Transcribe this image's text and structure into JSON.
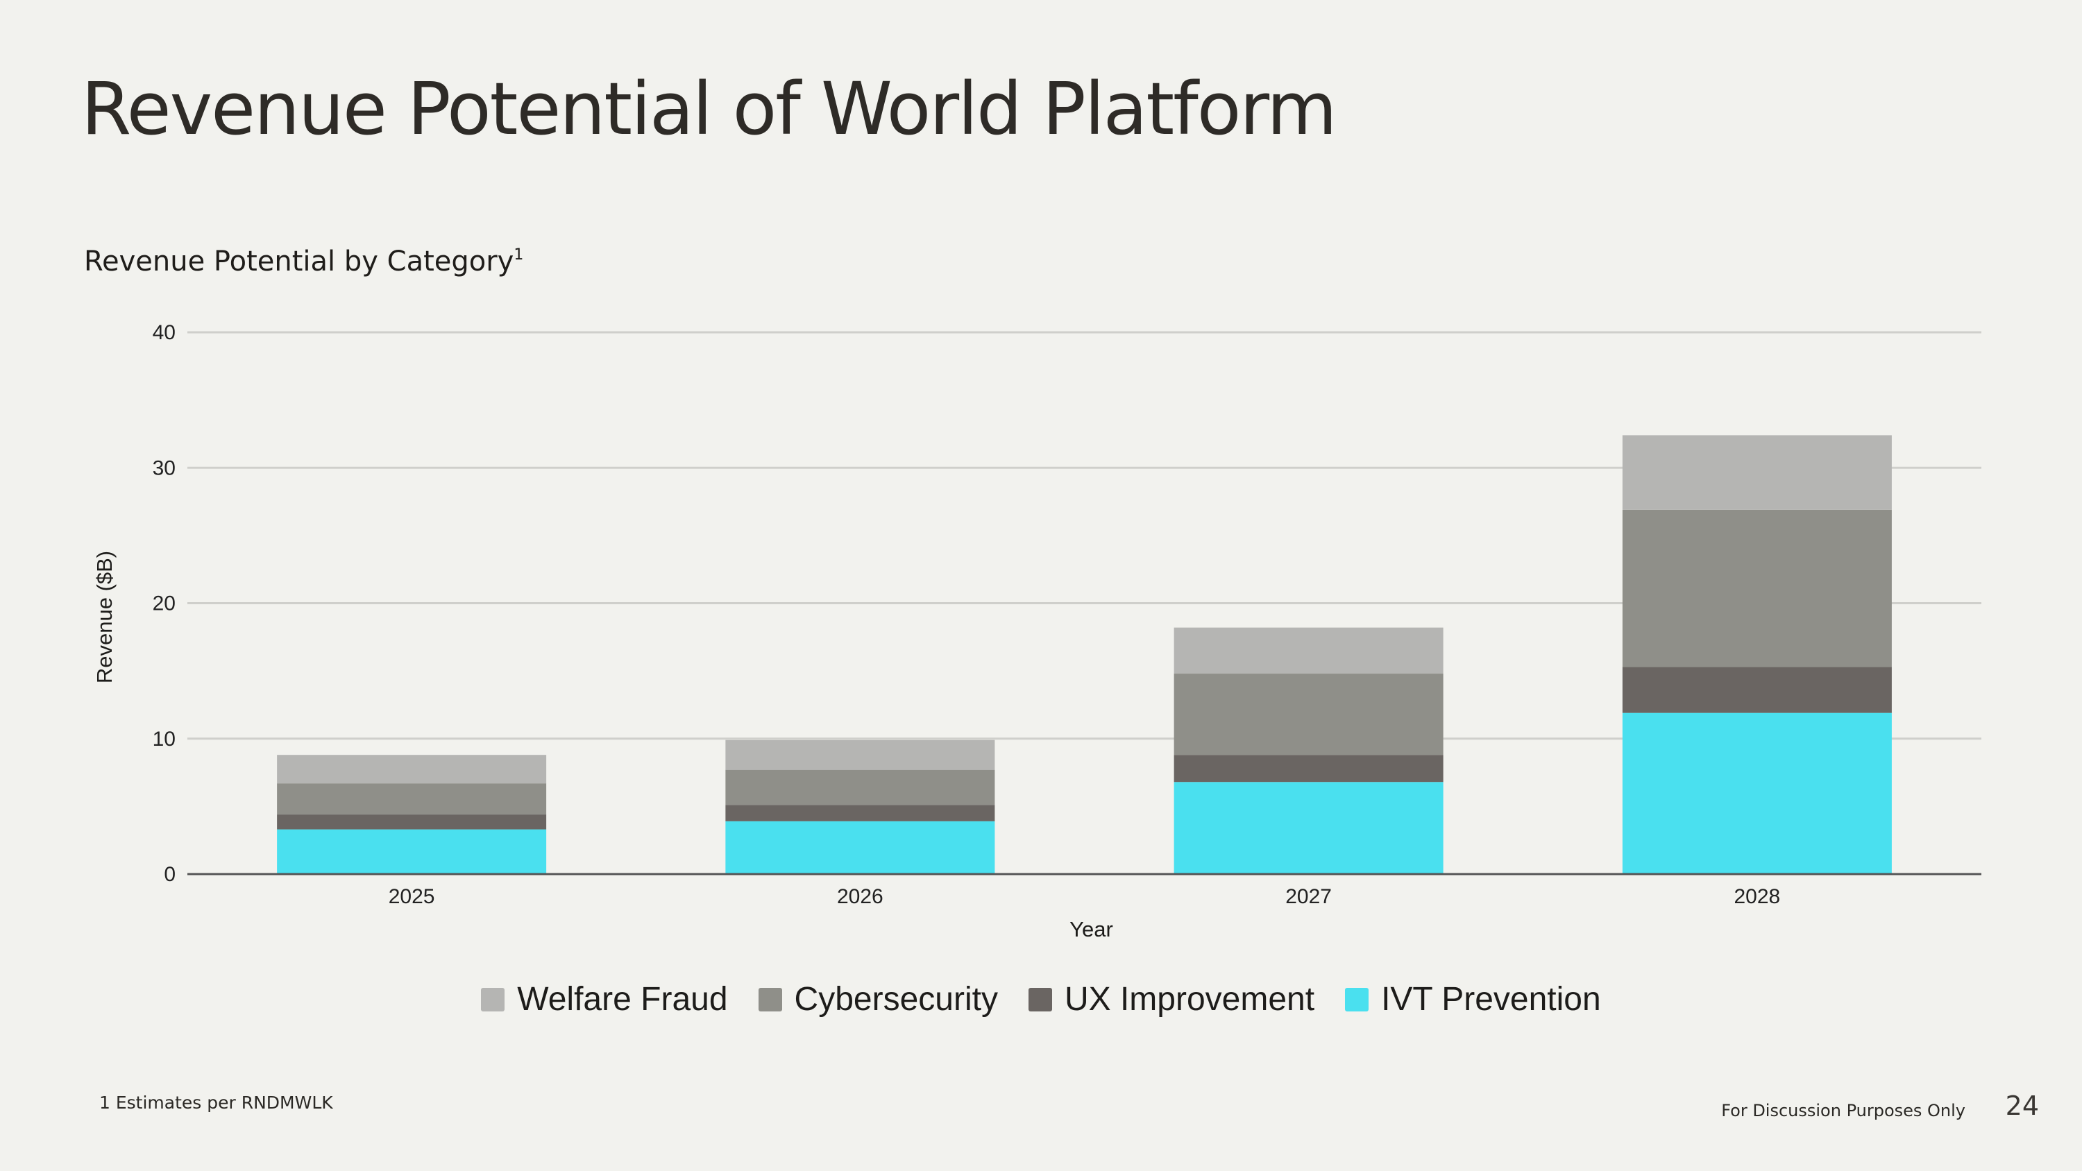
{
  "slide": {
    "title": "Revenue Potential of World Platform",
    "subtitle": "Revenue Potential by Category",
    "subtitle_sup": "1",
    "footnote": "1 Estimates per RNDMWLK",
    "footer_note": "For Discussion Purposes Only",
    "page_number": "24"
  },
  "chart_data": {
    "type": "bar",
    "stacked": true,
    "title": "Revenue Potential by Category",
    "xlabel": "Year",
    "ylabel": "Revenue ($B)",
    "ylim": [
      0,
      40
    ],
    "yticks": [
      0,
      10,
      20,
      30,
      40
    ],
    "grid": true,
    "legend_position": "bottom-center",
    "categories": [
      "2025",
      "2026",
      "2027",
      "2028"
    ],
    "series": [
      {
        "name": "IVT Prevention",
        "color": "#4ae0ef",
        "values": [
          3.3,
          3.9,
          6.8,
          11.9
        ]
      },
      {
        "name": "UX Improvement",
        "color": "#6a6562",
        "values": [
          1.1,
          1.2,
          2.0,
          3.4
        ]
      },
      {
        "name": "Cybersecurity",
        "color": "#8f8f89",
        "values": [
          2.3,
          2.6,
          6.0,
          11.6
        ]
      },
      {
        "name": "Welfare Fraud",
        "color": "#b5b5b3",
        "values": [
          2.1,
          2.2,
          3.4,
          5.5
        ]
      }
    ],
    "legend_order": [
      "Welfare Fraud",
      "Cybersecurity",
      "UX Improvement",
      "IVT Prevention"
    ]
  }
}
